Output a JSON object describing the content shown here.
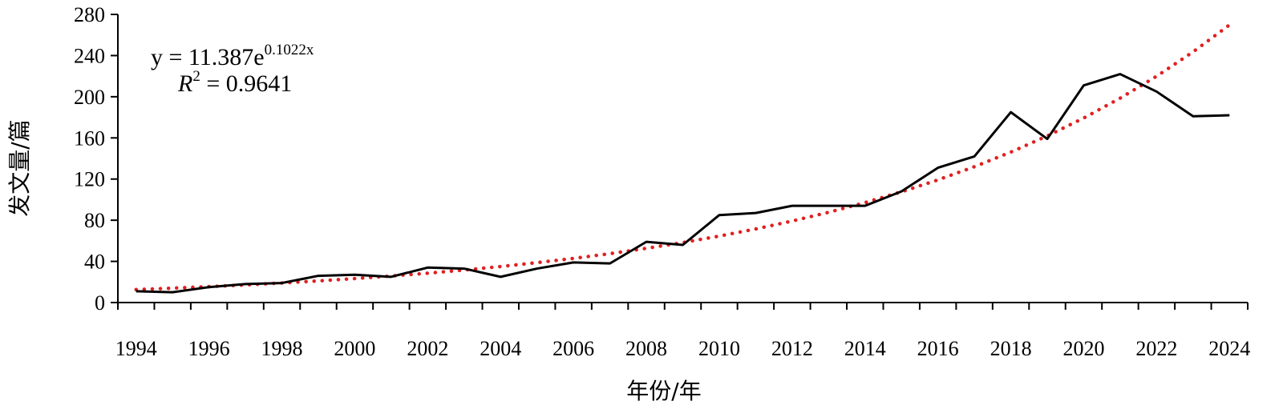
{
  "chart_data": {
    "type": "line",
    "xlabel": "年份/年",
    "ylabel": "发文量/篇",
    "xlim": [
      1994,
      2024
    ],
    "ylim": [
      0,
      280
    ],
    "yticks": [
      "0",
      "40",
      "80",
      "120",
      "160",
      "200",
      "240",
      "280"
    ],
    "xticks": [
      "1994",
      "1996",
      "1998",
      "2000",
      "2002",
      "2004",
      "2006",
      "2008",
      "2010",
      "2012",
      "2014",
      "2016",
      "2018",
      "2020",
      "2022",
      "2024"
    ],
    "grid": false,
    "x": [
      1994,
      1995,
      1996,
      1997,
      1998,
      1999,
      2000,
      2001,
      2002,
      2003,
      2004,
      2005,
      2006,
      2007,
      2008,
      2009,
      2010,
      2011,
      2012,
      2013,
      2014,
      2015,
      2016,
      2017,
      2018,
      2019,
      2020,
      2021,
      2022,
      2023,
      2024
    ],
    "series": [
      {
        "style": "solid",
        "color": "#000000",
        "values": [
          11,
          10,
          15,
          18,
          19,
          26,
          27,
          25,
          34,
          33,
          25,
          33,
          39,
          38,
          59,
          56,
          85,
          87,
          94,
          94,
          94,
          108,
          131,
          142,
          185,
          159,
          211,
          222,
          205,
          181,
          182
        ]
      },
      {
        "style": "dotted",
        "color": "#e02020",
        "trendline": "exponential",
        "equation": "y = 11.387e^0.1022x",
        "r_squared": "R² = 0.9641",
        "values": [
          12.6,
          14.0,
          15.5,
          17.1,
          19.0,
          21.0,
          23.3,
          25.8,
          28.5,
          31.6,
          35.0,
          38.8,
          42.9,
          47.5,
          52.7,
          58.3,
          64.6,
          71.5,
          79.2,
          87.7,
          97.1,
          107.6,
          119.2,
          132.0,
          146.2,
          161.9,
          179.3,
          198.6,
          219.9,
          243.6,
          269.8
        ]
      }
    ],
    "annotation": {
      "eq_prefix": "y = 11.387e",
      "eq_exponent": "0.1022x",
      "r2_var": "R",
      "r2_sup": "2",
      "r2_rest": " = 0.9641"
    }
  }
}
